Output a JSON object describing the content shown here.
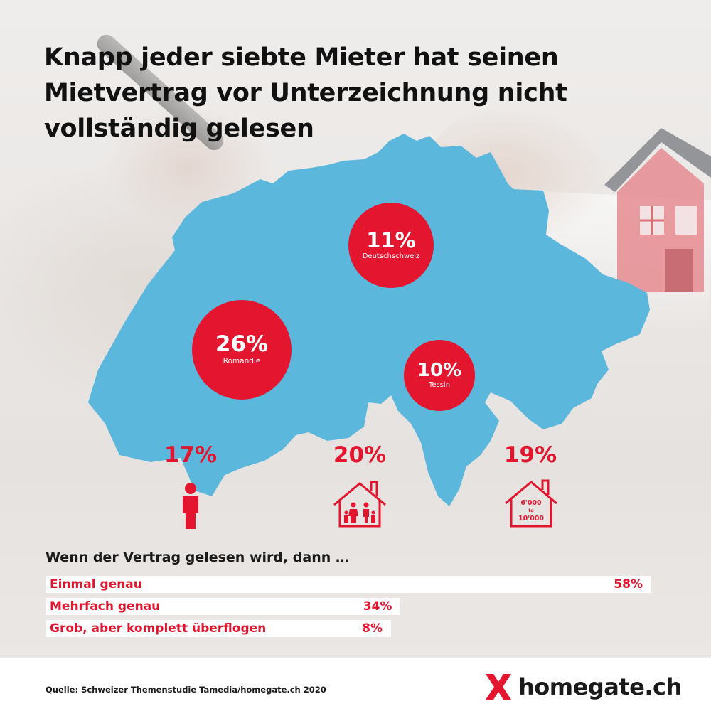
{
  "title": "Knapp jeder siebte Mieter hat seinen Mietvertrag vor Unterzeichnung nicht vollständig gelesen",
  "colors": {
    "accent": "#e3152f",
    "map": "#5bb8dc",
    "bar_background": "#ffffff",
    "text": "#111111"
  },
  "regions": [
    {
      "value": "11%",
      "label": "Deutschschweiz"
    },
    {
      "value": "26%",
      "label": "Romandie"
    },
    {
      "value": "10%",
      "label": "Tessin"
    }
  ],
  "stats": [
    {
      "value": "17%",
      "icon": "person-icon"
    },
    {
      "value": "20%",
      "icon": "family-house-icon"
    },
    {
      "value": "19%",
      "icon": "house-income-icon",
      "icon_text_1": "6'000",
      "icon_text_2": "to",
      "icon_text_3": "10'000"
    }
  ],
  "subheading": "Wenn der Vertrag gelesen wird, dann …",
  "chart_data": {
    "type": "bar",
    "orientation": "horizontal",
    "categories": [
      "Einmal genau",
      "Mehrfach genau",
      "Grob, aber komplett überflogen"
    ],
    "values": [
      58,
      34,
      8
    ],
    "value_labels": [
      "58%",
      "34%",
      "8%"
    ],
    "unit": "%"
  },
  "source": "Quelle: Schweizer Themenstudie Tamedia/homegate.ch 2020",
  "logo": {
    "text": "homegate.ch",
    "icon": "homegate-x-icon"
  }
}
